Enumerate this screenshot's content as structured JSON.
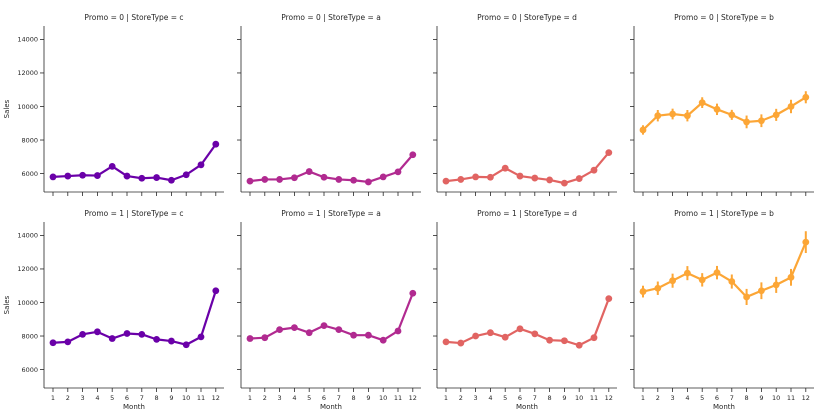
{
  "chart_data": {
    "type": "line",
    "xlabel": "Month",
    "ylabel": "Sales",
    "x": [
      1,
      2,
      3,
      4,
      5,
      6,
      7,
      8,
      9,
      10,
      11,
      12
    ],
    "ylim": [
      4900,
      14800
    ],
    "yticks": [
      6000,
      8000,
      10000,
      12000,
      14000
    ],
    "grid": false,
    "legend": "none",
    "panels": [
      {
        "title": "Promo = 0 | StoreType = c",
        "row": 0,
        "col": 0,
        "color": "#6a00a8",
        "values": [
          5800,
          5850,
          5900,
          5880,
          6430,
          5850,
          5720,
          5760,
          5600,
          5930,
          6520,
          7750
        ],
        "err": [
          60,
          60,
          60,
          60,
          70,
          60,
          60,
          60,
          60,
          60,
          70,
          90
        ]
      },
      {
        "title": "Promo = 0 | StoreType = a",
        "row": 0,
        "col": 1,
        "color": "#b12a90",
        "values": [
          5550,
          5650,
          5650,
          5750,
          6120,
          5780,
          5650,
          5600,
          5500,
          5800,
          6100,
          7120
        ],
        "err": [
          50,
          50,
          50,
          50,
          60,
          50,
          50,
          50,
          50,
          50,
          60,
          80
        ]
      },
      {
        "title": "Promo = 0 | StoreType = d",
        "row": 0,
        "col": 2,
        "color": "#e16462",
        "values": [
          5550,
          5650,
          5800,
          5780,
          6320,
          5850,
          5730,
          5620,
          5430,
          5700,
          6200,
          7250
        ],
        "err": [
          50,
          50,
          50,
          50,
          60,
          50,
          50,
          50,
          50,
          50,
          60,
          80
        ]
      },
      {
        "title": "Promo = 0 | StoreType = b",
        "row": 0,
        "col": 3,
        "color": "#fca636",
        "values": [
          8600,
          9450,
          9550,
          9450,
          10230,
          9830,
          9500,
          9080,
          9150,
          9500,
          10000,
          10550
        ],
        "err": [
          280,
          340,
          320,
          340,
          320,
          340,
          300,
          380,
          380,
          360,
          400,
          360
        ]
      },
      {
        "title": "Promo = 1 | StoreType = c",
        "row": 1,
        "col": 0,
        "color": "#6a00a8",
        "values": [
          7600,
          7650,
          8100,
          8250,
          7850,
          8150,
          8100,
          7800,
          7700,
          7480,
          7950,
          10700
        ],
        "err": [
          70,
          70,
          80,
          80,
          70,
          80,
          80,
          70,
          70,
          70,
          80,
          110
        ]
      },
      {
        "title": "Promo = 1 | StoreType = a",
        "row": 1,
        "col": 1,
        "color": "#b12a90",
        "values": [
          7850,
          7900,
          8380,
          8500,
          8200,
          8620,
          8380,
          8050,
          8050,
          7750,
          8300,
          10550
        ],
        "err": [
          60,
          60,
          70,
          70,
          60,
          70,
          70,
          60,
          60,
          60,
          70,
          100
        ]
      },
      {
        "title": "Promo = 1 | StoreType = d",
        "row": 1,
        "col": 2,
        "color": "#e16462",
        "values": [
          7650,
          7580,
          8000,
          8200,
          7930,
          8430,
          8130,
          7750,
          7720,
          7450,
          7900,
          10230
        ],
        "err": [
          60,
          60,
          70,
          70,
          60,
          70,
          70,
          60,
          60,
          60,
          70,
          100
        ]
      },
      {
        "title": "Promo = 1 | StoreType = b",
        "row": 1,
        "col": 3,
        "color": "#fca636",
        "values": [
          10650,
          10850,
          11300,
          11750,
          11350,
          11780,
          11250,
          10330,
          10700,
          11050,
          11500,
          13600
        ],
        "err": [
          350,
          400,
          420,
          420,
          400,
          400,
          420,
          480,
          500,
          480,
          500,
          650
        ]
      }
    ]
  }
}
